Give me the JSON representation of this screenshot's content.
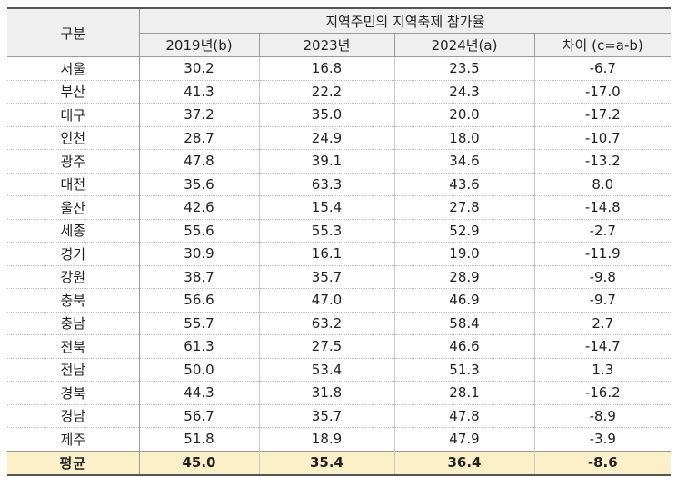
{
  "header": {
    "category": "구분",
    "group_title": "지역주민의 지역축제 참가율",
    "columns": [
      "2019년(b)",
      "2023년",
      "2024년(a)",
      "차이 (c=a-b)"
    ]
  },
  "rows": [
    {
      "region": "서울",
      "v2019": "30.2",
      "v2023": "16.8",
      "v2024": "23.5",
      "diff": "-6.7"
    },
    {
      "region": "부산",
      "v2019": "41.3",
      "v2023": "22.2",
      "v2024": "24.3",
      "diff": "-17.0"
    },
    {
      "region": "대구",
      "v2019": "37.2",
      "v2023": "35.0",
      "v2024": "20.0",
      "diff": "-17.2"
    },
    {
      "region": "인천",
      "v2019": "28.7",
      "v2023": "24.9",
      "v2024": "18.0",
      "diff": "-10.7"
    },
    {
      "region": "광주",
      "v2019": "47.8",
      "v2023": "39.1",
      "v2024": "34.6",
      "diff": "-13.2"
    },
    {
      "region": "대전",
      "v2019": "35.6",
      "v2023": "63.3",
      "v2024": "43.6",
      "diff": "8.0"
    },
    {
      "region": "울산",
      "v2019": "42.6",
      "v2023": "15.4",
      "v2024": "27.8",
      "diff": "-14.8"
    },
    {
      "region": "세종",
      "v2019": "55.6",
      "v2023": "55.3",
      "v2024": "52.9",
      "diff": "-2.7"
    },
    {
      "region": "경기",
      "v2019": "30.9",
      "v2023": "16.1",
      "v2024": "19.0",
      "diff": "-11.9"
    },
    {
      "region": "강원",
      "v2019": "38.7",
      "v2023": "35.7",
      "v2024": "28.9",
      "diff": "-9.8"
    },
    {
      "region": "충북",
      "v2019": "56.6",
      "v2023": "47.0",
      "v2024": "46.9",
      "diff": "-9.7"
    },
    {
      "region": "충남",
      "v2019": "55.7",
      "v2023": "63.2",
      "v2024": "58.4",
      "diff": "2.7"
    },
    {
      "region": "전북",
      "v2019": "61.3",
      "v2023": "27.5",
      "v2024": "46.6",
      "diff": "-14.7"
    },
    {
      "region": "전남",
      "v2019": "50.0",
      "v2023": "53.4",
      "v2024": "51.3",
      "diff": "1.3"
    },
    {
      "region": "경북",
      "v2019": "44.3",
      "v2023": "31.8",
      "v2024": "28.1",
      "diff": "-16.2"
    },
    {
      "region": "경남",
      "v2019": "56.7",
      "v2023": "35.7",
      "v2024": "47.8",
      "diff": "-8.9"
    },
    {
      "region": "제주",
      "v2019": "51.8",
      "v2023": "18.9",
      "v2024": "47.9",
      "diff": "-3.9"
    }
  ],
  "average": {
    "region": "평균",
    "v2019": "45.0",
    "v2023": "35.4",
    "v2024": "36.4",
    "diff": "-8.6"
  },
  "colors": {
    "header_bg": "#efefef",
    "average_bg": "#fbf0c8",
    "text": "#222222"
  }
}
